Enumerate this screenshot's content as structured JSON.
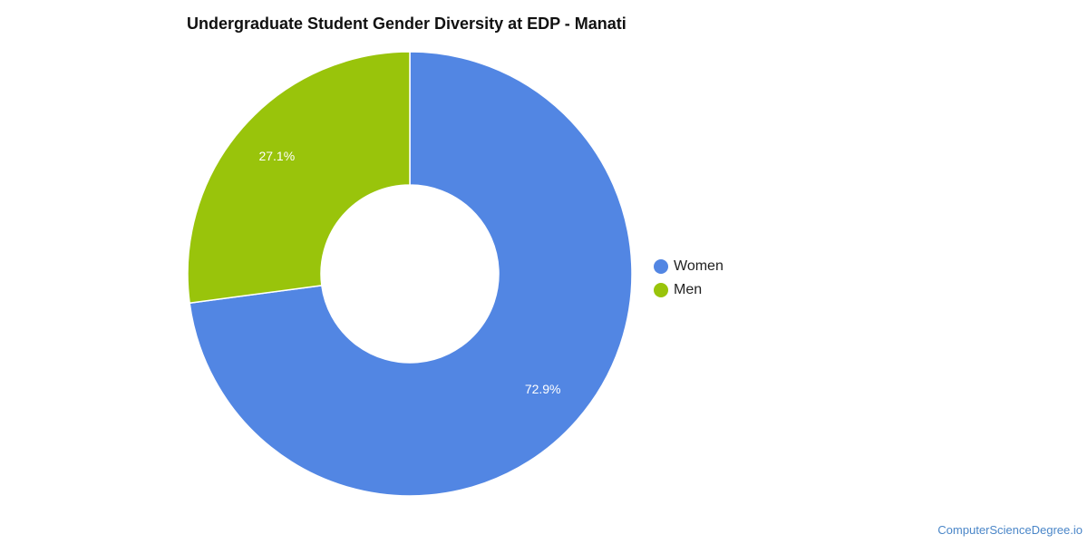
{
  "chart_data": {
    "type": "pie",
    "title": "Undergraduate Student Gender Diversity at EDP - Manati",
    "donut": true,
    "legend_position": "right",
    "series": [
      {
        "name": "Gender",
        "slices": [
          {
            "label": "Women",
            "value": 72.9,
            "display": "72.9%",
            "color": "#5286e3"
          },
          {
            "label": "Men",
            "value": 27.1,
            "display": "27.1%",
            "color": "#99c40b"
          }
        ]
      }
    ]
  },
  "source_credit": "ComputerScienceDegree.io"
}
